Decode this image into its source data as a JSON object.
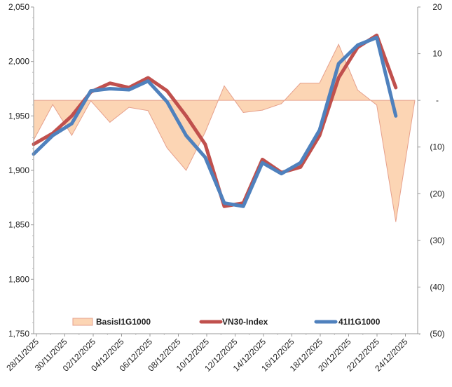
{
  "chart_data": {
    "type": "line",
    "dates": [
      "28/11/2025",
      "01/12/2025",
      "02/12/2025",
      "03/12/2025",
      "04/12/2025",
      "05/12/2025",
      "08/12/2025",
      "09/12/2025",
      "10/12/2025",
      "11/12/2025",
      "12/12/2025",
      "15/12/2025",
      "16/12/2025",
      "17/12/2025",
      "18/12/2025",
      "19/12/2025",
      "22/12/2025",
      "23/12/2025",
      "24/12/2025",
      "25/12/2025",
      "26/12/2025"
    ],
    "x_ticks": [
      "28/11/2025",
      "30/11/2025",
      "02/12/2025",
      "04/12/2025",
      "06/12/2025",
      "08/12/2025",
      "10/12/2025",
      "12/12/2025",
      "14/12/2025",
      "16/12/2025",
      "18/12/2025",
      "20/12/2025",
      "22/12/2025",
      "24/12/2025"
    ],
    "left_axis": {
      "ylim": [
        1750,
        2050
      ],
      "ticks": [
        "2,050",
        "2,000",
        "1,950",
        "1,900",
        "1,850",
        "1,800",
        "1,750"
      ],
      "tick_values": [
        2050,
        2000,
        1950,
        1900,
        1850,
        1800,
        1750
      ]
    },
    "right_axis": {
      "ylim": [
        -50,
        20
      ],
      "ticks": [
        "20",
        "10",
        "-",
        "(10)",
        "(20)",
        "(30)",
        "(40)",
        "(50)"
      ],
      "tick_values": [
        20,
        10,
        0,
        -10,
        -20,
        -30,
        -40,
        -50
      ]
    },
    "series": [
      {
        "name": "BasisI1G1000",
        "kind": "area",
        "axis": "right",
        "color": "#fcd5b4",
        "edge_color": "#e6a08c",
        "values": [
          -8.5,
          -0.9,
          -7.5,
          -0.1,
          -4.7,
          -1.5,
          -2.2,
          -10.2,
          -15.0,
          -6.8,
          3.1,
          -2.6,
          -2.1,
          -0.7,
          3.7,
          3.7,
          12.0,
          2.2,
          -1.0,
          -26.0,
          0
        ]
      },
      {
        "name": "VN30-Index",
        "kind": "line",
        "axis": "left",
        "color": "#c0504d",
        "values": [
          1924,
          1934,
          1950,
          1972,
          1980,
          1976,
          1985,
          1973,
          1950,
          1924,
          1867,
          1870,
          1910,
          1898,
          1903,
          1932,
          1985,
          2013,
          2024,
          1976,
          null
        ]
      },
      {
        "name": "41I1G1000",
        "kind": "line",
        "axis": "left",
        "color": "#4f81bd",
        "values": [
          1915,
          1932,
          1943,
          1973,
          1975,
          1974,
          1982,
          1963,
          1932,
          1912,
          1870,
          1867,
          1907,
          1897,
          1907,
          1937,
          1998,
          2015,
          2022,
          1950,
          null
        ]
      }
    ],
    "legend_position": "bottom-inside",
    "grid": false
  }
}
